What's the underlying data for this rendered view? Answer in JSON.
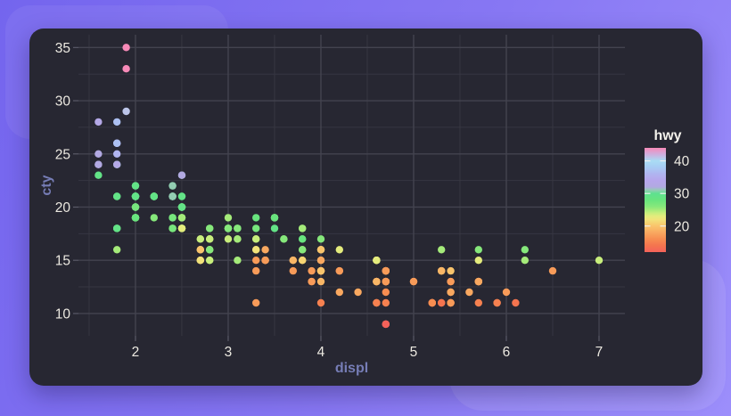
{
  "chart_data": {
    "type": "scatter",
    "title": "",
    "xlabel": "displ",
    "ylabel": "cty",
    "xlim": [
      1.385,
      7.279
    ],
    "ylim": [
      7.9,
      36.2
    ],
    "x_major_ticks": [
      2,
      3,
      4,
      5,
      6,
      7
    ],
    "x_minor_ticks": [
      1.5,
      2.5,
      3.5,
      4.5,
      5.5,
      6.5
    ],
    "y_major_ticks": [
      10,
      15,
      20,
      25,
      30,
      35
    ],
    "y_minor_ticks": [
      12.5,
      17.5,
      22.5,
      27.5,
      32.5
    ],
    "grid": true,
    "legend": {
      "title": "hwy",
      "position": "right",
      "ticks": [
        40,
        30,
        20
      ],
      "domain": [
        12,
        44
      ]
    },
    "color_scale_stops": [
      [
        12,
        "#f4625a"
      ],
      [
        14,
        "#f4744f"
      ],
      [
        16,
        "#f78d51"
      ],
      [
        18,
        "#f9a860"
      ],
      [
        20,
        "#f9c46c"
      ],
      [
        22,
        "#f2e37a"
      ],
      [
        23,
        "#e4ec7d"
      ],
      [
        24,
        "#c8ee7c"
      ],
      [
        25,
        "#a5eb7a"
      ],
      [
        26,
        "#86e87b"
      ],
      [
        28,
        "#68e47e"
      ],
      [
        30,
        "#5ee18f"
      ],
      [
        31,
        "#93cdb3"
      ],
      [
        32,
        "#b2a9e2"
      ],
      [
        34,
        "#b6a6ec"
      ],
      [
        36,
        "#b0b4f0"
      ],
      [
        38,
        "#a8ccf4"
      ],
      [
        40,
        "#a9dcf4"
      ],
      [
        42,
        "#cfaede"
      ],
      [
        44,
        "#f78ab8"
      ]
    ],
    "points": [
      [
        1.8,
        18,
        29
      ],
      [
        1.8,
        21,
        29
      ],
      [
        2.0,
        20,
        31
      ],
      [
        2.0,
        21,
        30
      ],
      [
        2.8,
        16,
        26
      ],
      [
        2.8,
        18,
        26
      ],
      [
        3.1,
        18,
        27
      ],
      [
        1.8,
        18,
        26
      ],
      [
        1.8,
        16,
        25
      ],
      [
        2.0,
        20,
        28
      ],
      [
        2.0,
        19,
        27
      ],
      [
        2.8,
        15,
        25
      ],
      [
        2.8,
        17,
        25
      ],
      [
        3.1,
        17,
        25
      ],
      [
        3.1,
        15,
        25
      ],
      [
        2.8,
        15,
        24
      ],
      [
        3.1,
        17,
        25
      ],
      [
        4.2,
        16,
        23
      ],
      [
        5.3,
        14,
        20
      ],
      [
        5.3,
        11,
        15
      ],
      [
        5.3,
        14,
        20
      ],
      [
        5.7,
        13,
        17
      ],
      [
        6.0,
        12,
        17
      ],
      [
        5.7,
        16,
        26
      ],
      [
        5.7,
        15,
        23
      ],
      [
        6.2,
        16,
        26
      ],
      [
        6.2,
        15,
        25
      ],
      [
        7.0,
        15,
        24
      ],
      [
        5.3,
        14,
        19
      ],
      [
        5.3,
        11,
        14
      ],
      [
        5.7,
        11,
        15
      ],
      [
        6.5,
        14,
        17
      ],
      [
        2.4,
        19,
        27
      ],
      [
        2.4,
        22,
        30
      ],
      [
        3.1,
        18,
        26
      ],
      [
        3.5,
        18,
        29
      ],
      [
        3.6,
        17,
        26
      ],
      [
        2.4,
        18,
        24
      ],
      [
        3.0,
        17,
        24
      ],
      [
        3.3,
        16,
        22
      ],
      [
        3.3,
        16,
        22
      ],
      [
        3.3,
        17,
        24
      ],
      [
        3.3,
        17,
        24
      ],
      [
        3.3,
        11,
        17
      ],
      [
        3.8,
        15,
        22
      ],
      [
        3.8,
        15,
        21
      ],
      [
        3.8,
        16,
        23
      ],
      [
        4.0,
        16,
        23
      ],
      [
        3.7,
        15,
        19
      ],
      [
        3.7,
        14,
        17
      ],
      [
        3.9,
        13,
        17
      ],
      [
        3.9,
        13,
        17
      ],
      [
        4.7,
        9,
        12
      ],
      [
        4.7,
        14,
        17
      ],
      [
        4.7,
        14,
        17
      ],
      [
        5.2,
        11,
        15
      ],
      [
        5.2,
        11,
        15
      ],
      [
        3.9,
        14,
        17
      ],
      [
        4.7,
        13,
        17
      ],
      [
        4.7,
        9,
        12
      ],
      [
        4.7,
        13,
        17
      ],
      [
        5.2,
        11,
        16
      ],
      [
        5.7,
        13,
        18
      ],
      [
        5.9,
        11,
        15
      ],
      [
        4.7,
        13,
        17
      ],
      [
        4.7,
        9,
        12
      ],
      [
        4.7,
        13,
        17
      ],
      [
        4.7,
        13,
        17
      ],
      [
        4.7,
        13,
        17
      ],
      [
        4.7,
        12,
        16
      ],
      [
        5.2,
        11,
        15
      ],
      [
        5.2,
        11,
        16
      ],
      [
        5.7,
        13,
        17
      ],
      [
        5.9,
        11,
        15
      ],
      [
        4.6,
        11,
        17
      ],
      [
        5.4,
        11,
        17
      ],
      [
        5.4,
        12,
        18
      ],
      [
        4.0,
        14,
        17
      ],
      [
        4.0,
        14,
        17
      ],
      [
        4.0,
        13,
        19
      ],
      [
        4.0,
        14,
        17
      ],
      [
        4.6,
        13,
        19
      ],
      [
        5.0,
        13,
        17
      ],
      [
        4.2,
        14,
        17
      ],
      [
        4.2,
        14,
        17
      ],
      [
        4.6,
        13,
        16
      ],
      [
        4.6,
        13,
        16
      ],
      [
        4.6,
        13,
        17
      ],
      [
        5.4,
        13,
        17
      ],
      [
        5.4,
        13,
        17
      ],
      [
        3.8,
        18,
        26
      ],
      [
        3.8,
        18,
        25
      ],
      [
        4.0,
        17,
        26
      ],
      [
        4.6,
        15,
        22
      ],
      [
        4.6,
        15,
        23
      ],
      [
        4.6,
        15,
        22
      ],
      [
        4.6,
        15,
        22
      ],
      [
        4.6,
        15,
        23
      ],
      [
        5.4,
        14,
        20
      ],
      [
        1.6,
        28,
        33
      ],
      [
        1.6,
        24,
        32
      ],
      [
        1.6,
        25,
        32
      ],
      [
        1.6,
        23,
        29
      ],
      [
        1.6,
        24,
        32
      ],
      [
        1.8,
        25,
        36
      ],
      [
        1.8,
        24,
        36
      ],
      [
        1.8,
        26,
        34
      ],
      [
        2.0,
        21,
        29
      ],
      [
        2.4,
        18,
        26
      ],
      [
        2.4,
        18,
        27
      ],
      [
        2.4,
        21,
        30
      ],
      [
        2.4,
        21,
        31
      ],
      [
        2.5,
        18,
        26
      ],
      [
        2.5,
        18,
        26
      ],
      [
        3.3,
        19,
        28
      ],
      [
        2.0,
        19,
        26
      ],
      [
        2.0,
        19,
        29
      ],
      [
        2.0,
        20,
        28
      ],
      [
        2.0,
        20,
        27
      ],
      [
        2.7,
        17,
        24
      ],
      [
        2.7,
        16,
        24
      ],
      [
        2.7,
        17,
        24
      ],
      [
        3.7,
        15,
        19
      ],
      [
        4.0,
        15,
        20
      ],
      [
        4.7,
        14,
        17
      ],
      [
        4.7,
        9,
        12
      ],
      [
        4.7,
        14,
        19
      ],
      [
        4.7,
        14,
        17
      ],
      [
        5.7,
        13,
        18
      ],
      [
        6.1,
        11,
        14
      ],
      [
        4.0,
        11,
        15
      ],
      [
        4.2,
        12,
        18
      ],
      [
        4.4,
        12,
        18
      ],
      [
        4.6,
        11,
        15
      ],
      [
        5.4,
        11,
        16
      ],
      [
        5.4,
        11,
        17
      ],
      [
        5.4,
        12,
        18
      ],
      [
        4.0,
        14,
        17
      ],
      [
        4.0,
        14,
        19
      ],
      [
        4.6,
        13,
        19
      ],
      [
        5.0,
        13,
        17
      ],
      [
        2.4,
        19,
        27
      ],
      [
        2.4,
        19,
        27
      ],
      [
        2.5,
        23,
        31
      ],
      [
        2.5,
        23,
        32
      ],
      [
        3.5,
        19,
        25
      ],
      [
        3.5,
        19,
        27
      ],
      [
        3.0,
        18,
        26
      ],
      [
        3.0,
        19,
        25
      ],
      [
        3.5,
        19,
        25
      ],
      [
        3.3,
        14,
        17
      ],
      [
        3.3,
        15,
        17
      ],
      [
        4.0,
        14,
        20
      ],
      [
        5.6,
        12,
        18
      ],
      [
        3.1,
        18,
        26
      ],
      [
        3.8,
        16,
        26
      ],
      [
        3.8,
        17,
        27
      ],
      [
        3.8,
        17,
        28
      ],
      [
        5.3,
        16,
        25
      ],
      [
        2.5,
        18,
        25
      ],
      [
        2.5,
        18,
        24
      ],
      [
        2.5,
        20,
        27
      ],
      [
        2.5,
        19,
        26
      ],
      [
        2.5,
        20,
        26
      ],
      [
        2.5,
        18,
        23
      ],
      [
        2.2,
        21,
        26
      ],
      [
        2.2,
        19,
        26
      ],
      [
        2.5,
        19,
        26
      ],
      [
        2.5,
        19,
        26
      ],
      [
        2.5,
        20,
        27
      ],
      [
        2.5,
        20,
        25
      ],
      [
        2.2,
        21,
        27
      ],
      [
        2.5,
        19,
        25
      ],
      [
        2.7,
        15,
        20
      ],
      [
        2.7,
        16,
        20
      ],
      [
        3.4,
        15,
        19
      ],
      [
        3.4,
        15,
        19
      ],
      [
        4.0,
        16,
        20
      ],
      [
        4.7,
        14,
        17
      ],
      [
        2.2,
        21,
        29
      ],
      [
        2.2,
        21,
        27
      ],
      [
        2.4,
        21,
        31
      ],
      [
        2.4,
        21,
        31
      ],
      [
        3.0,
        18,
        26
      ],
      [
        3.0,
        18,
        26
      ],
      [
        3.5,
        19,
        28
      ],
      [
        2.2,
        21,
        27
      ],
      [
        2.2,
        21,
        29
      ],
      [
        2.4,
        21,
        31
      ],
      [
        2.4,
        22,
        31
      ],
      [
        3.0,
        18,
        26
      ],
      [
        3.0,
        18,
        26
      ],
      [
        3.3,
        18,
        27
      ],
      [
        1.8,
        24,
        30
      ],
      [
        1.8,
        24,
        33
      ],
      [
        1.8,
        26,
        35
      ],
      [
        1.8,
        26,
        37
      ],
      [
        1.8,
        28,
        37
      ],
      [
        4.7,
        11,
        15
      ],
      [
        5.7,
        13,
        18
      ],
      [
        2.7,
        15,
        20
      ],
      [
        2.7,
        16,
        20
      ],
      [
        2.7,
        15,
        22
      ],
      [
        3.4,
        15,
        17
      ],
      [
        3.4,
        16,
        18
      ],
      [
        4.0,
        15,
        18
      ],
      [
        4.0,
        16,
        20
      ],
      [
        2.0,
        21,
        29
      ],
      [
        2.0,
        19,
        26
      ],
      [
        2.0,
        21,
        29
      ],
      [
        2.0,
        22,
        29
      ],
      [
        2.8,
        17,
        24
      ],
      [
        1.9,
        33,
        44
      ],
      [
        2.0,
        21,
        29
      ],
      [
        2.0,
        19,
        26
      ],
      [
        2.0,
        22,
        29
      ],
      [
        2.0,
        21,
        29
      ],
      [
        2.5,
        21,
        29
      ],
      [
        2.5,
        21,
        29
      ],
      [
        2.8,
        16,
        23
      ],
      [
        2.8,
        17,
        24
      ],
      [
        1.9,
        35,
        44
      ],
      [
        1.9,
        29,
        41
      ],
      [
        2.0,
        19,
        26
      ],
      [
        2.0,
        21,
        29
      ],
      [
        2.5,
        20,
        28
      ],
      [
        2.5,
        20,
        29
      ],
      [
        1.8,
        21,
        29
      ],
      [
        1.8,
        18,
        29
      ],
      [
        2.0,
        19,
        28
      ],
      [
        2.0,
        21,
        29
      ],
      [
        2.8,
        16,
        26
      ],
      [
        2.8,
        18,
        26
      ],
      [
        3.6,
        17,
        26
      ]
    ]
  },
  "style": {
    "outer_bg_start": "#7465ee",
    "outer_bg_end": "#9c8efb",
    "card_bg": "#272732",
    "grid_major": "#43434f",
    "grid_minor": "#373742",
    "tick_mark": "#5a5a68",
    "tick_text": "#ece9e1",
    "axis_title_color": "#767db6",
    "legend_title_color": "#f4f2ec",
    "legend_tick_dash": "#f0f0f0"
  }
}
